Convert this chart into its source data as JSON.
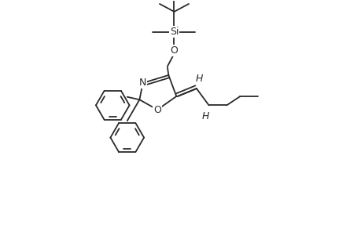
{
  "background_color": "#ffffff",
  "line_color": "#2a2a2a",
  "line_width": 1.3,
  "figsize": [
    4.6,
    3.0
  ],
  "dpi": 100,
  "xlim": [
    -0.5,
    9.5
  ],
  "ylim": [
    -1.0,
    9.5
  ]
}
